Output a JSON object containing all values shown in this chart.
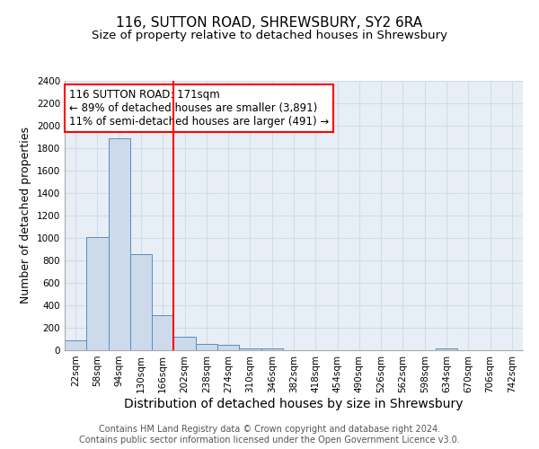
{
  "title_line1": "116, SUTTON ROAD, SHREWSBURY, SY2 6RA",
  "title_line2": "Size of property relative to detached houses in Shrewsbury",
  "xlabel": "Distribution of detached houses by size in Shrewsbury",
  "ylabel": "Number of detached properties",
  "bar_labels": [
    "22sqm",
    "58sqm",
    "94sqm",
    "130sqm",
    "166sqm",
    "202sqm",
    "238sqm",
    "274sqm",
    "310sqm",
    "346sqm",
    "382sqm",
    "418sqm",
    "454sqm",
    "490sqm",
    "526sqm",
    "562sqm",
    "598sqm",
    "634sqm",
    "670sqm",
    "706sqm",
    "742sqm"
  ],
  "bar_values": [
    90,
    1010,
    1890,
    860,
    315,
    120,
    55,
    45,
    20,
    15,
    0,
    0,
    0,
    0,
    0,
    0,
    0,
    20,
    0,
    0,
    0
  ],
  "bar_color": "#cddaec",
  "bar_edge_color": "#5b8db8",
  "vline_x": 4.5,
  "vline_color": "red",
  "annotation_text": "116 SUTTON ROAD: 171sqm\n← 89% of detached houses are smaller (3,891)\n11% of semi-detached houses are larger (491) →",
  "annotation_box_color": "white",
  "annotation_box_edge_color": "red",
  "ylim": [
    0,
    2400
  ],
  "yticks": [
    0,
    200,
    400,
    600,
    800,
    1000,
    1200,
    1400,
    1600,
    1800,
    2000,
    2200,
    2400
  ],
  "grid_color": "#d0dce8",
  "background_color": "#e8eef5",
  "footer_line1": "Contains HM Land Registry data © Crown copyright and database right 2024.",
  "footer_line2": "Contains public sector information licensed under the Open Government Licence v3.0.",
  "title1_fontsize": 11,
  "title2_fontsize": 9.5,
  "xlabel_fontsize": 10,
  "ylabel_fontsize": 9,
  "tick_fontsize": 7.5,
  "annotation_fontsize": 8.5,
  "footer_fontsize": 7
}
